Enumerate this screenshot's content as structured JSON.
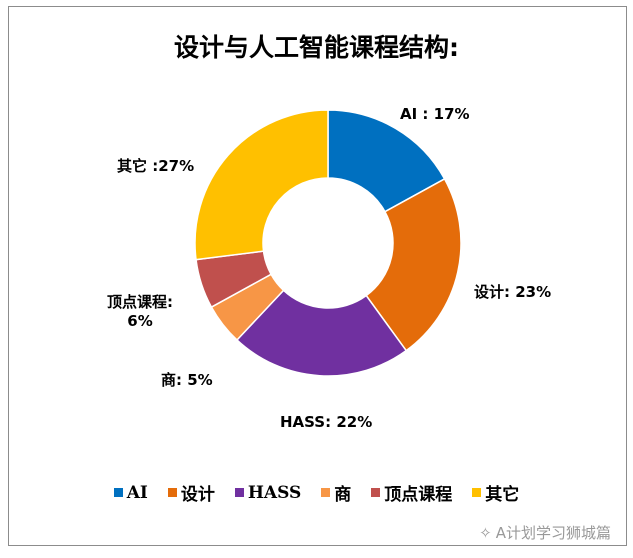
{
  "chart_data": {
    "type": "pie",
    "subtype": "doughnut",
    "title": "设计与人工智能课程结构:",
    "categories": [
      "AI",
      "设计",
      "HASS",
      "商",
      "顶点课程",
      "其它"
    ],
    "values": [
      17,
      23,
      22,
      5,
      6,
      27
    ],
    "unit": "%",
    "colors": [
      "#0070C0",
      "#E46C0A",
      "#7030A0",
      "#F79646",
      "#C0504D",
      "#FFC000"
    ],
    "data_labels": [
      "AI : 17%",
      "设计: 23%",
      "HASS: 22%",
      "商: 5%",
      "顶点课程:",
      "其它 :27%"
    ],
    "data_label_extra": "6%",
    "legend_position": "bottom"
  },
  "watermark": "A计划学习狮城篇"
}
